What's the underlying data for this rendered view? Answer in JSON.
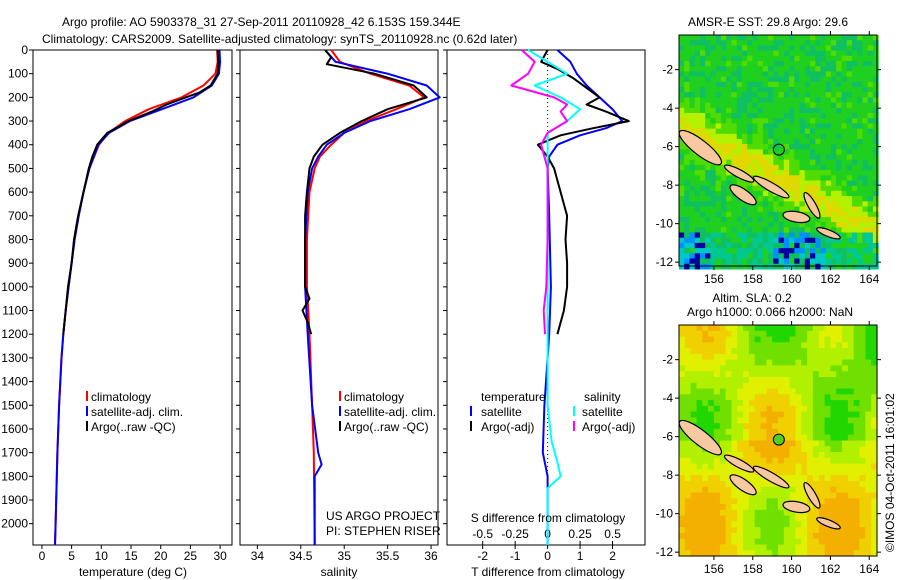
{
  "header": {
    "title_line1": "Argo profile: AO 5903378_31 27-Sep-2011 20110928_42 6.153S 159.344E",
    "title_line2": "Climatology: CARS2009. Satellite-adjusted climatology: synTS_20110928.nc (0.62d later)"
  },
  "colors": {
    "climatology": "#ff0000",
    "satellite": "#0000ff",
    "argo": "#000000",
    "sal_satellite": "#00ffff",
    "sal_argo": "#ff00ff"
  },
  "chart_data": [
    {
      "type": "line",
      "id": "temperature",
      "xlabel": "temperature (deg C)",
      "ylabel": "",
      "xlim": [
        -1.5,
        32
      ],
      "ylim": [
        2090,
        0
      ],
      "xticks": [
        0,
        5,
        10,
        15,
        20,
        25,
        30
      ],
      "yticks": [
        0,
        100,
        200,
        300,
        400,
        500,
        600,
        700,
        800,
        900,
        1000,
        1100,
        1200,
        1300,
        1400,
        1500,
        1600,
        1700,
        1800,
        1900,
        2000
      ],
      "legend": [
        "climatology",
        "satellite-adj. clim.",
        "Argo(..raw -QC)"
      ],
      "series": [
        {
          "name": "climatology",
          "color": "#ff0000",
          "depth": [
            0,
            50,
            100,
            150,
            200,
            250,
            300,
            350,
            400,
            500,
            600,
            700,
            800,
            900,
            1000,
            1100,
            1200,
            1300,
            1500,
            1700,
            2000,
            2090
          ],
          "values": [
            29.5,
            29.6,
            29.2,
            27.2,
            23.5,
            18.0,
            14.0,
            11.2,
            9.6,
            8.0,
            7.0,
            6.2,
            5.5,
            5.0,
            4.5,
            4.0,
            3.6,
            3.3,
            2.9,
            2.6,
            2.3,
            2.2
          ]
        },
        {
          "name": "satellite-adj. clim.",
          "color": "#0000ff",
          "depth": [
            0,
            50,
            100,
            150,
            200,
            250,
            300,
            350,
            400,
            500,
            600,
            700,
            800,
            900,
            1000,
            1100,
            1200,
            1300,
            1500,
            1700,
            2000,
            2090
          ],
          "values": [
            29.9,
            30.0,
            29.8,
            28.6,
            25.5,
            20.2,
            14.8,
            11.3,
            9.5,
            8.0,
            7.0,
            6.2,
            5.5,
            5.0,
            4.5,
            4.0,
            3.6,
            3.3,
            2.9,
            2.6,
            2.3,
            2.2
          ]
        },
        {
          "name": "Argo(..raw -QC)",
          "color": "#000000",
          "depth": [
            0,
            50,
            100,
            150,
            180,
            200,
            230,
            260,
            300,
            350,
            400,
            450,
            500,
            600,
            700,
            800,
            900,
            1000,
            1100,
            1200
          ],
          "values": [
            29.6,
            29.7,
            29.6,
            28.4,
            26.5,
            24.2,
            21.0,
            18.5,
            14.6,
            11.0,
            9.3,
            8.5,
            7.9,
            7.0,
            6.1,
            5.4,
            5.0,
            4.4,
            4.0,
            3.6
          ]
        }
      ]
    },
    {
      "type": "line",
      "id": "salinity",
      "xlabel": "salinity",
      "xlim": [
        33.8,
        36.08
      ],
      "ylim": [
        2090,
        0
      ],
      "xticks": [
        34,
        34.5,
        35,
        35.5,
        36
      ],
      "legend": [
        "climatology",
        "satellite-adj. clim.",
        "Argo(..raw -QC)"
      ],
      "annotation": [
        "US ARGO PROJECT",
        "PI: STEPHEN RISER"
      ],
      "series": [
        {
          "name": "climatology",
          "color": "#ff0000",
          "depth": [
            0,
            50,
            100,
            150,
            200,
            250,
            300,
            350,
            400,
            450,
            500,
            600,
            800,
            1000,
            1200,
            1500,
            1700,
            2090
          ],
          "values": [
            34.85,
            34.95,
            35.3,
            35.75,
            35.92,
            35.6,
            35.25,
            35.0,
            34.85,
            34.72,
            34.66,
            34.6,
            34.57,
            34.57,
            34.6,
            34.63,
            34.65,
            34.66
          ]
        },
        {
          "name": "satellite-adj. clim.",
          "color": "#0000ff",
          "depth": [
            0,
            50,
            100,
            150,
            200,
            250,
            300,
            350,
            400,
            450,
            500,
            600,
            800,
            1000,
            1200,
            1500,
            1700,
            1750,
            1800,
            2090
          ],
          "values": [
            34.78,
            34.9,
            35.5,
            35.95,
            36.1,
            35.75,
            35.3,
            35.0,
            34.8,
            34.7,
            34.63,
            34.58,
            34.55,
            34.55,
            34.58,
            34.63,
            34.7,
            34.74,
            34.66,
            34.66
          ]
        },
        {
          "name": "Argo(..raw -QC)",
          "color": "#000000",
          "depth": [
            0,
            30,
            60,
            100,
            150,
            200,
            250,
            300,
            350,
            400,
            450,
            500,
            600,
            700,
            800,
            900,
            1000,
            1050,
            1100,
            1150,
            1200
          ],
          "values": [
            34.78,
            34.85,
            34.8,
            35.35,
            35.8,
            35.95,
            35.5,
            35.2,
            34.95,
            34.75,
            34.65,
            34.6,
            34.57,
            34.55,
            34.55,
            34.55,
            34.55,
            34.6,
            34.52,
            34.58,
            34.62
          ]
        }
      ]
    },
    {
      "type": "line",
      "id": "difference",
      "xlabel": "T difference from climatology",
      "xlabel2": "S difference from climatology",
      "xlim": [
        -3.1,
        3.0
      ],
      "ylim": [
        2090,
        0
      ],
      "xticks": [
        -2,
        -1,
        0,
        1,
        2
      ],
      "xticks2": [
        -0.5,
        -0.25,
        0,
        0.25,
        0.5
      ],
      "legend_headers": [
        "temperature",
        "salinity"
      ],
      "legend": [
        "satellite",
        "Argo(-adj)",
        "satellite",
        "Argo(-adj)"
      ],
      "series": [
        {
          "name": "T satellite",
          "axis": "T",
          "color": "#0000ff",
          "depth": [
            0,
            50,
            100,
            150,
            200,
            250,
            300,
            330,
            360,
            400,
            450,
            500,
            700,
            1000,
            1200,
            1500,
            1700,
            1800,
            2090
          ],
          "values": [
            0.3,
            0.7,
            0.9,
            1.2,
            1.6,
            2.0,
            2.3,
            1.8,
            1.0,
            0.3,
            0.05,
            0.0,
            0.05,
            0.1,
            0.05,
            -0.1,
            -0.15,
            0.0,
            0.0
          ]
        },
        {
          "name": "T Argo(-adj)",
          "axis": "T",
          "color": "#000000",
          "depth": [
            0,
            50,
            80,
            120,
            160,
            200,
            230,
            260,
            300,
            330,
            360,
            400,
            450,
            500,
            600,
            700,
            800,
            900,
            1000,
            1100,
            1200
          ],
          "values": [
            0.0,
            -0.2,
            0.3,
            0.8,
            1.2,
            1.6,
            1.2,
            1.8,
            2.5,
            1.4,
            0.4,
            -0.3,
            0.0,
            0.2,
            0.4,
            0.6,
            0.55,
            0.6,
            0.6,
            0.5,
            0.3
          ]
        },
        {
          "name": "S satellite",
          "axis": "S",
          "color": "#00ffff",
          "depth": [
            0,
            50,
            100,
            150,
            200,
            250,
            300,
            350,
            400,
            500,
            800,
            1200,
            1500,
            1650,
            1750,
            1800,
            1850,
            2090
          ],
          "values": [
            -0.15,
            0.0,
            0.15,
            -0.1,
            0.1,
            0.25,
            0.15,
            0.0,
            0.0,
            0.0,
            0.0,
            0.0,
            0.0,
            0.03,
            0.08,
            0.1,
            0.0,
            0.0
          ]
        },
        {
          "name": "S Argo(-adj)",
          "axis": "S",
          "color": "#ff00ff",
          "depth": [
            0,
            50,
            100,
            150,
            200,
            230,
            260,
            300,
            350,
            400,
            500,
            800,
            1000,
            1100,
            1200
          ],
          "values": [
            -0.2,
            -0.1,
            -0.15,
            -0.28,
            0.05,
            0.15,
            0.1,
            0.15,
            0.0,
            -0.05,
            0.0,
            0.0,
            -0.01,
            -0.03,
            -0.02
          ]
        }
      ]
    }
  ],
  "maps": [
    {
      "id": "sst",
      "title": "AMSR-E SST: 29.8 Argo: 29.6",
      "lon_ticks": [
        156,
        158,
        160,
        162,
        164
      ],
      "lat_ticks": [
        -2,
        -4,
        -6,
        -8,
        -10,
        -12
      ],
      "argo_lon": 159.344,
      "argo_lat": -6.153
    },
    {
      "id": "sla",
      "title_line1": "Altim. SLA: 0.2",
      "title_line2": "Argo h1000: 0.066 h2000: NaN",
      "lon_ticks": [
        156,
        158,
        160,
        162,
        164
      ],
      "lat_ticks": [
        -2,
        -4,
        -6,
        -8,
        -10,
        -12
      ],
      "argo_lon": 159.344,
      "argo_lat": -6.153
    }
  ],
  "footer": {
    "credit": "©IMOS 04-Oct-2011 16:01:02"
  }
}
